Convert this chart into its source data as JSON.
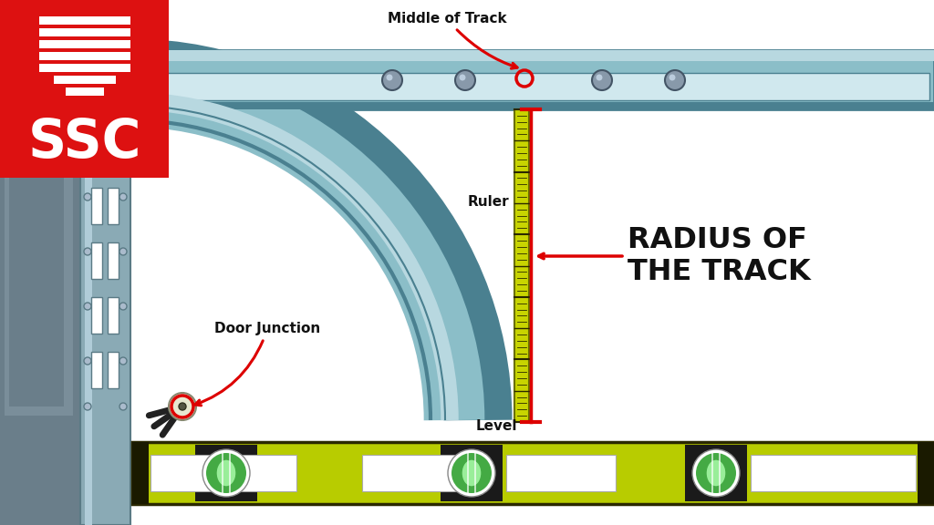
{
  "bg_color": "#ffffff",
  "track_color": "#8bbec8",
  "track_dark": "#4a8090",
  "track_light": "#b8d8e0",
  "track_inner": "#d0e8ee",
  "ruler_color": "#c8d400",
  "ruler_dark": "#6a7000",
  "level_color": "#b8cc00",
  "level_edge": "#2a2800",
  "red_color": "#dd0000",
  "black_color": "#111111",
  "wall_color": "#8aaab5",
  "wall_light": "#b0ccd8",
  "wall_dark": "#5a7a85",
  "door_bg": "#778898",
  "ssc_red": "#dd1111",
  "ssc_white": "#ffffff",
  "label_middle_of_track": "Middle of Track",
  "label_ruler": "Ruler",
  "label_level": "Level",
  "label_door_junction": "Door Junction",
  "label_radius": "RADIUS OF\nTHE TRACK"
}
